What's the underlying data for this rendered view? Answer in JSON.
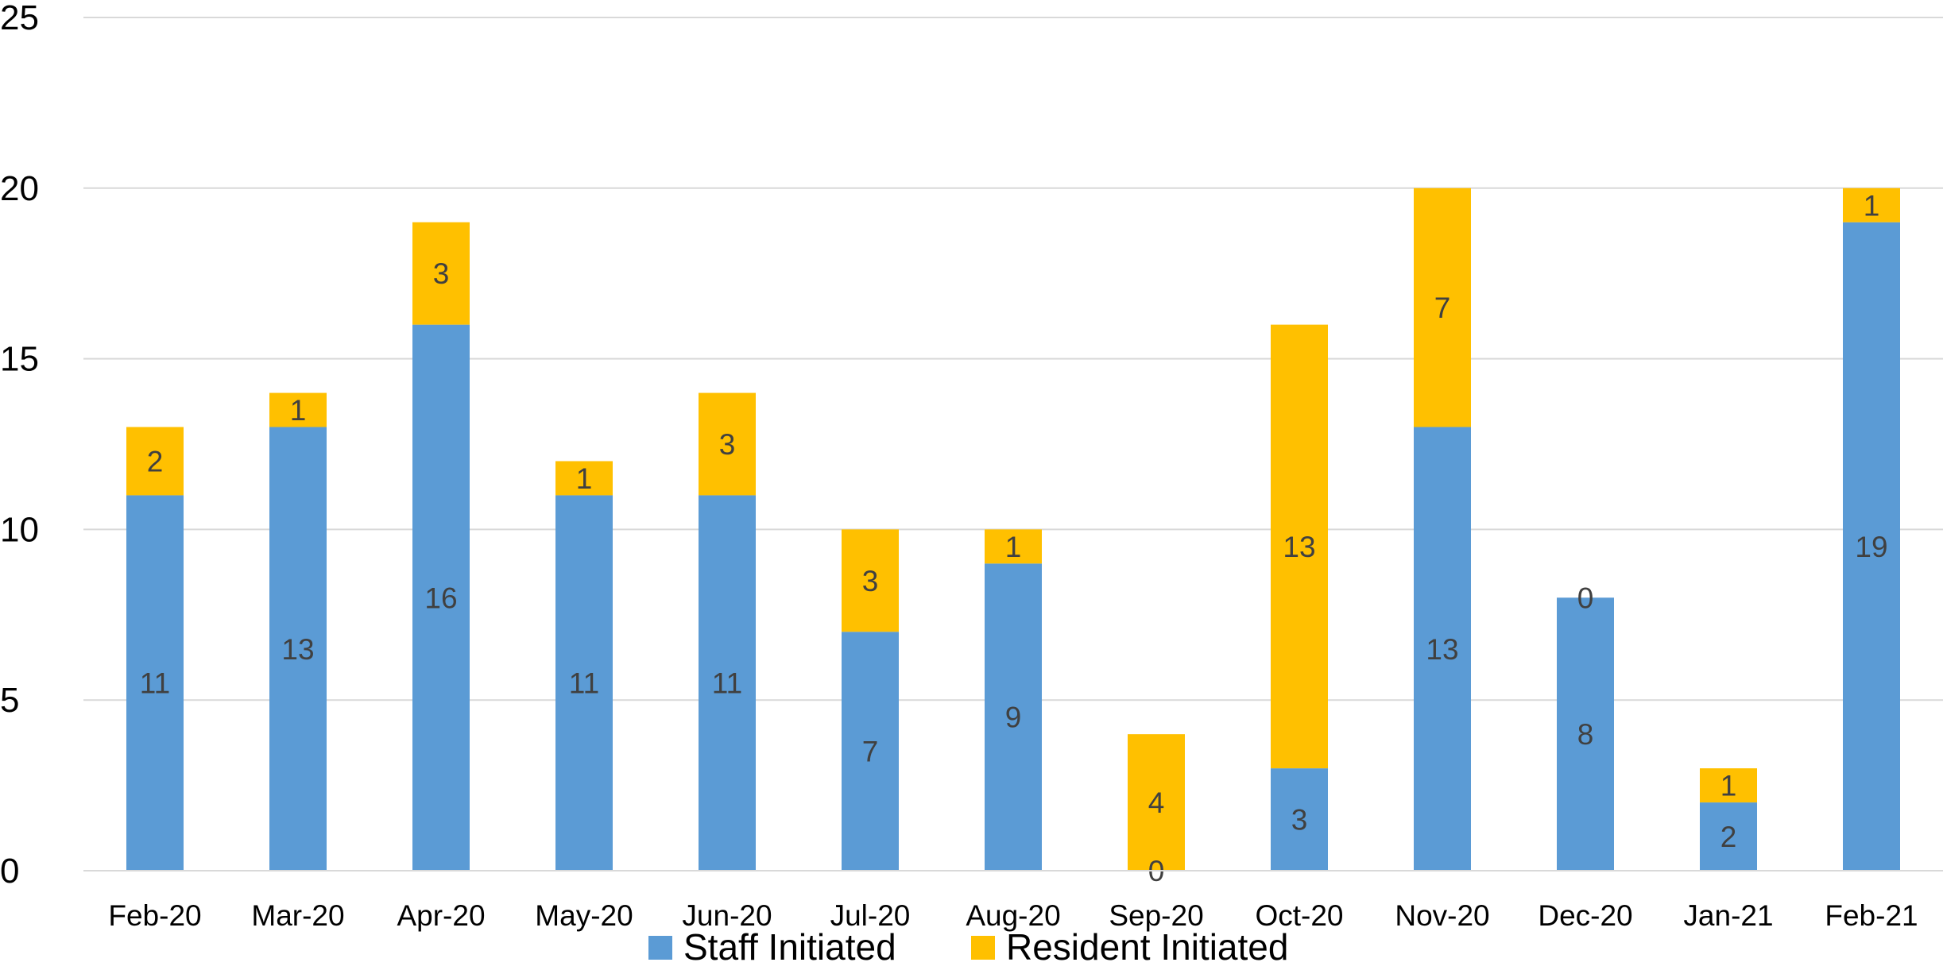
{
  "chart_data": {
    "type": "bar",
    "stacked": true,
    "categories": [
      "Feb-20",
      "Mar-20",
      "Apr-20",
      "May-20",
      "Jun-20",
      "Jul-20",
      "Aug-20",
      "Sep-20",
      "Oct-20",
      "Nov-20",
      "Dec-20",
      "Jan-21",
      "Feb-21"
    ],
    "series": [
      {
        "name": "Staff Initiated",
        "color": "#5B9BD5",
        "values": [
          11,
          13,
          16,
          11,
          11,
          7,
          9,
          0,
          3,
          13,
          8,
          2,
          19
        ]
      },
      {
        "name": "Resident Initiated",
        "color": "#FFC000",
        "values": [
          2,
          1,
          3,
          1,
          3,
          3,
          1,
          4,
          13,
          7,
          0,
          1,
          1
        ]
      }
    ],
    "ylim": [
      0,
      25
    ],
    "yticks": [
      "0",
      "5",
      "10",
      "15",
      "20",
      "25"
    ],
    "grid": true,
    "legend_position": "bottom",
    "data_labels": true
  }
}
